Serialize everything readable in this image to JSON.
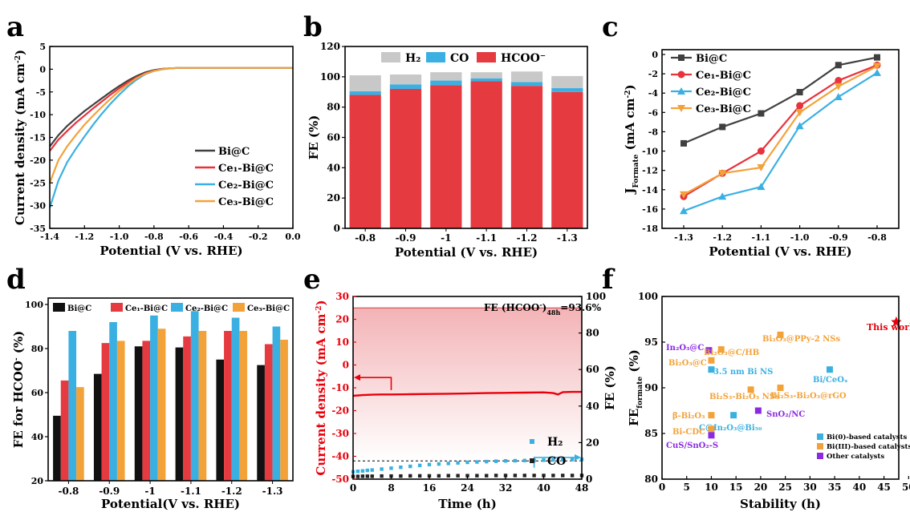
{
  "chart_data": [
    {
      "panel": "a",
      "type": "line",
      "xlabel": "Potential (V vs. RHE)",
      "ylabel": "Current density (mA cm",
      "ylabel_sup": "-2",
      "ylabel_end": ")",
      "xlim": [
        -1.4,
        0.0
      ],
      "ylim": [
        -35,
        5
      ],
      "xticks": [
        "-1.4",
        "-1.2",
        "-1.0",
        "-0.8",
        "-0.6",
        "-0.4",
        "-0.2",
        "0.0"
      ],
      "yticks": [
        "5",
        "0",
        "-5",
        "-10",
        "-15",
        "-20",
        "-25",
        "-30",
        "-35"
      ],
      "legend_position": "bottom-right",
      "series": [
        {
          "name": "Bi@C",
          "color": "#404040",
          "x": [
            -1.4,
            -1.35,
            -1.3,
            -1.25,
            -1.2,
            -1.15,
            -1.1,
            -1.05,
            -1.0,
            -0.95,
            -0.9,
            -0.85,
            -0.8,
            -0.75,
            -0.7,
            -0.65,
            -0.6,
            -0.5,
            -0.4,
            -0.3,
            -0.2,
            -0.1,
            0.0
          ],
          "y": [
            -17,
            -14.5,
            -12.5,
            -10.8,
            -9.2,
            -7.8,
            -6.4,
            -5.0,
            -3.7,
            -2.5,
            -1.5,
            -0.7,
            -0.2,
            0.1,
            0.2,
            0.3,
            0.3,
            0.3,
            0.3,
            0.3,
            0.3,
            0.3,
            0.3
          ]
        },
        {
          "name": "Ce₁-Bi@C",
          "color": "#e8323c",
          "x": [
            -1.4,
            -1.35,
            -1.3,
            -1.25,
            -1.2,
            -1.15,
            -1.1,
            -1.05,
            -1.0,
            -0.95,
            -0.9,
            -0.85,
            -0.8,
            -0.75,
            -0.7,
            -0.65,
            -0.6,
            -0.5,
            -0.4,
            -0.3,
            -0.2,
            -0.1,
            0.0
          ],
          "y": [
            -18,
            -15.5,
            -13.6,
            -11.8,
            -10.2,
            -8.6,
            -7.1,
            -5.6,
            -4.2,
            -2.9,
            -1.8,
            -0.9,
            -0.3,
            0.05,
            0.2,
            0.3,
            0.3,
            0.3,
            0.3,
            0.3,
            0.3,
            0.3,
            0.3
          ]
        },
        {
          "name": "Ce₂-Bi@C",
          "color": "#3ab0e2",
          "x": [
            -1.4,
            -1.35,
            -1.3,
            -1.25,
            -1.2,
            -1.15,
            -1.1,
            -1.05,
            -1.0,
            -0.95,
            -0.9,
            -0.85,
            -0.8,
            -0.75,
            -0.7,
            -0.65,
            -0.6,
            -0.5,
            -0.4,
            -0.3,
            -0.2,
            -0.1,
            0.0
          ],
          "y": [
            -30.5,
            -24.5,
            -20.5,
            -17.5,
            -14.8,
            -12.2,
            -9.8,
            -7.6,
            -5.6,
            -3.8,
            -2.3,
            -1.1,
            -0.4,
            0.0,
            0.2,
            0.3,
            0.3,
            0.3,
            0.3,
            0.3,
            0.3,
            0.3,
            0.3
          ]
        },
        {
          "name": "Ce₃-Bi@C",
          "color": "#f3a23a",
          "x": [
            -1.4,
            -1.35,
            -1.3,
            -1.25,
            -1.2,
            -1.15,
            -1.1,
            -1.05,
            -1.0,
            -0.95,
            -0.9,
            -0.85,
            -0.8,
            -0.75,
            -0.7,
            -0.65,
            -0.6,
            -0.5,
            -0.4,
            -0.3,
            -0.2,
            -0.1,
            0.0
          ],
          "y": [
            -25,
            -20,
            -17,
            -14.5,
            -12.2,
            -10.2,
            -8.3,
            -6.5,
            -4.8,
            -3.3,
            -2.0,
            -1.0,
            -0.35,
            0.0,
            0.2,
            0.3,
            0.3,
            0.3,
            0.3,
            0.3,
            0.3,
            0.3,
            0.3
          ]
        }
      ]
    },
    {
      "panel": "b",
      "type": "bar",
      "stacked": true,
      "xlabel": "Potential (V vs. RHE)",
      "ylabel": "FE (%)",
      "ylim": [
        0,
        120
      ],
      "yticks": [
        "0",
        "20",
        "40",
        "60",
        "80",
        "100",
        "120"
      ],
      "categories": [
        "-0.8",
        "-0.9",
        "-1",
        "-1.1",
        "-1.2",
        "-1.3"
      ],
      "legend_position": "top",
      "series": [
        {
          "name": "HCOO⁻",
          "color": "#e53a3f",
          "values": [
            88,
            92,
            94.5,
            97,
            94,
            90
          ]
        },
        {
          "name": "CO",
          "color": "#3ab0e2",
          "values": [
            2.5,
            3,
            3,
            2,
            2.5,
            2.5
          ]
        },
        {
          "name": "H₂",
          "color": "#c8c8c8",
          "values": [
            10.5,
            6.5,
            5.5,
            4,
            7,
            8
          ]
        }
      ]
    },
    {
      "panel": "c",
      "type": "line",
      "xlabel": "Potential (V vs. RHE)",
      "ylabel": "J",
      "ylabel_sub": "Formate",
      "ylabel_end": " (mA cm",
      "ylabel_sup": "-2",
      "ylabel_close": ")",
      "xlim": [
        -1.3,
        -0.8
      ],
      "ylim": [
        -18,
        0
      ],
      "xticks": [
        "-1.3",
        "-1.2",
        "-1.1",
        "-1.0",
        "-0.9",
        "-0.8"
      ],
      "yticks": [
        "0",
        "-2",
        "-4",
        "-6",
        "-8",
        "-10",
        "-12",
        "-14",
        "-16",
        "-18"
      ],
      "legend_position": "top-left",
      "x": [
        -1.3,
        -1.2,
        -1.1,
        -1.0,
        -0.9,
        -0.8
      ],
      "series": [
        {
          "name": "Bi@C",
          "color": "#404040",
          "marker": "square",
          "values": [
            -9.2,
            -7.5,
            -6.1,
            -3.9,
            -1.1,
            -0.3
          ]
        },
        {
          "name": "Ce₁-Bi@C",
          "color": "#e8323c",
          "marker": "circle",
          "values": [
            -14.7,
            -12.3,
            -10.0,
            -5.3,
            -2.7,
            -1.1
          ]
        },
        {
          "name": "Ce₂-Bi@C",
          "color": "#3ab0e2",
          "marker": "triangle-up",
          "values": [
            -16.2,
            -14.7,
            -13.7,
            -7.4,
            -4.4,
            -1.9
          ]
        },
        {
          "name": "Ce₃-Bi@C",
          "color": "#f3a23a",
          "marker": "triangle-down",
          "values": [
            -14.5,
            -12.3,
            -11.7,
            -6.0,
            -3.3,
            -1.2
          ]
        }
      ]
    },
    {
      "panel": "d",
      "type": "bar",
      "xlabel": "Potential(V vs. RHE)",
      "ylabel": "FE for HCOO",
      "ylabel_sup": "-",
      "ylabel_end": " (%)",
      "ylim": [
        20,
        100
      ],
      "yticks": [
        "20",
        "40",
        "60",
        "80",
        "100"
      ],
      "categories": [
        "-0.8",
        "-0.9",
        "-1",
        "-1.1",
        "-1.2",
        "-1.3"
      ],
      "legend_position": "top",
      "series": [
        {
          "name": "Bi@C",
          "color": "#111111",
          "values": [
            49.5,
            68.5,
            81,
            80.5,
            75,
            72.5
          ]
        },
        {
          "name": "Ce₁-Bi@C",
          "color": "#e53a3f",
          "values": [
            65.5,
            82.5,
            83.5,
            85.5,
            88,
            82
          ]
        },
        {
          "name": "Ce₂-Bi@C",
          "color": "#3ab0e2",
          "values": [
            88,
            92,
            95,
            97,
            94,
            90
          ]
        },
        {
          "name": "Ce₃-Bi@C",
          "color": "#f3a23a",
          "values": [
            62.5,
            83.5,
            89,
            88,
            88,
            84
          ]
        }
      ]
    },
    {
      "panel": "e",
      "type": "line",
      "xlabel": "Time (h)",
      "ylabel": "Current density (mA cm",
      "ylabel_sup": "-2",
      "ylabel_end": ")",
      "ylabel2": "FE (%)",
      "xlim": [
        0,
        48
      ],
      "ylim": [
        -50,
        30
      ],
      "y2lim": [
        0,
        100
      ],
      "xticks": [
        "0",
        "8",
        "16",
        "24",
        "32",
        "40",
        "48"
      ],
      "yticks": [
        "30",
        "20",
        "10",
        "0",
        "-10",
        "-20",
        "-30",
        "-40",
        "-50"
      ],
      "y2ticks": [
        "0",
        "20",
        "40",
        "60",
        "80",
        "100"
      ],
      "annotation": "FE (HCOO",
      "annotation_sup": "-",
      "annotation_sub": "48h",
      "annotation_end": "=93.6%",
      "current": {
        "color": "#e8000b",
        "x": [
          0,
          2,
          4,
          6,
          8,
          12,
          16,
          20,
          24,
          28,
          32,
          36,
          40,
          42,
          43,
          44,
          46,
          48
        ],
        "y": [
          -13.5,
          -13.2,
          -13,
          -12.9,
          -12.9,
          -12.8,
          -12.7,
          -12.6,
          -12.5,
          -12.3,
          -12.2,
          -12.1,
          -12.0,
          -12.3,
          -12.9,
          -11.9,
          -11.8,
          -11.8
        ]
      },
      "legend_position": "bottom-right",
      "series": [
        {
          "name": "H₂",
          "color": "#3ab0e2",
          "x": [
            0,
            1,
            2,
            3,
            4,
            6,
            8,
            10,
            12,
            14,
            16,
            18,
            20,
            22,
            24,
            26,
            28,
            30,
            32,
            34,
            36,
            38,
            40,
            42,
            44,
            46,
            48
          ],
          "values": [
            4,
            4.3,
            4.5,
            4.8,
            5,
            5.5,
            6,
            6.5,
            7,
            7.5,
            8,
            8.3,
            8.6,
            8.9,
            9.2,
            9.4,
            9.6,
            9.8,
            10,
            10.1,
            10.2,
            10.3,
            10.4,
            10.5,
            10.6,
            10.7,
            10.8
          ]
        },
        {
          "name": "CO",
          "color": "#222222",
          "x": [
            0,
            1,
            2,
            3,
            4,
            6,
            8,
            10,
            12,
            14,
            16,
            18,
            20,
            22,
            24,
            26,
            28,
            30,
            32,
            34,
            36,
            38,
            40,
            42,
            44,
            46,
            48
          ],
          "values": [
            1.5,
            1.5,
            1.6,
            1.6,
            1.6,
            1.7,
            1.7,
            1.7,
            1.8,
            1.8,
            1.8,
            1.8,
            1.9,
            1.9,
            1.9,
            1.9,
            1.9,
            2,
            2,
            2,
            2,
            2,
            2,
            2,
            2,
            2,
            2
          ]
        }
      ]
    },
    {
      "panel": "f",
      "type": "scatter",
      "xlabel": "Stability (h)",
      "ylabel": "FE",
      "ylabel_sub": "formate",
      "ylabel_end": " (%)",
      "xlim": [
        0,
        48
      ],
      "ylim": [
        80,
        100
      ],
      "xticks": [
        "0",
        "5",
        "10",
        "15",
        "20",
        "25",
        "30",
        "35",
        "40",
        "45",
        "50"
      ],
      "yticks": [
        "80",
        "85",
        "90",
        "95",
        "100"
      ],
      "legend_position": "bottom-right",
      "groups": [
        {
          "name": "Bi(0)-based catalysts",
          "color": "#3ab0e2"
        },
        {
          "name": "Bi(III)-based catalysts",
          "color": "#f3a23a"
        },
        {
          "name": "Other catalysts",
          "color": "#8a2be2"
        }
      ],
      "points": [
        {
          "label": "This work",
          "group": "star",
          "color": "#e8000b",
          "x": 47.5,
          "y": 97.2
        },
        {
          "label": "Bi₂O₃@PPy-2 NSs",
          "group": 1,
          "x": 24,
          "y": 95.8
        },
        {
          "label": "In₂O₃@C",
          "group": 2,
          "x": 9.5,
          "y": 94.1
        },
        {
          "label": "Bi₂O₃@C/HB",
          "group": 1,
          "x": 12,
          "y": 94.2
        },
        {
          "label": "Bi₂O₃@C",
          "group": 1,
          "x": 10,
          "y": 93
        },
        {
          "label": "3.5 nm Bi NS",
          "group": 0,
          "x": 10,
          "y": 92
        },
        {
          "label": "Bi/CeOₓ",
          "group": 0,
          "x": 34,
          "y": 92
        },
        {
          "label": "Bi₂S₃-Bi₂O₃ NSs",
          "group": 1,
          "x": 18,
          "y": 89.8
        },
        {
          "label": "Bi₂S₃-Bi₂O₃@rGO",
          "group": 1,
          "x": 24,
          "y": 90
        },
        {
          "label": "β-Bi₂O₃",
          "group": 1,
          "x": 10,
          "y": 87
        },
        {
          "label": "C@In₂O₃@Bi₅₀",
          "group": 0,
          "x": 14.5,
          "y": 87
        },
        {
          "label": "SnO₂/NC",
          "group": 2,
          "x": 19.5,
          "y": 87.5
        },
        {
          "label": "Bi-CDC",
          "group": 1,
          "x": 10,
          "y": 85.5
        },
        {
          "label": "CuS/SnO₂-S",
          "group": 2,
          "x": 10,
          "y": 84.8
        }
      ]
    }
  ]
}
